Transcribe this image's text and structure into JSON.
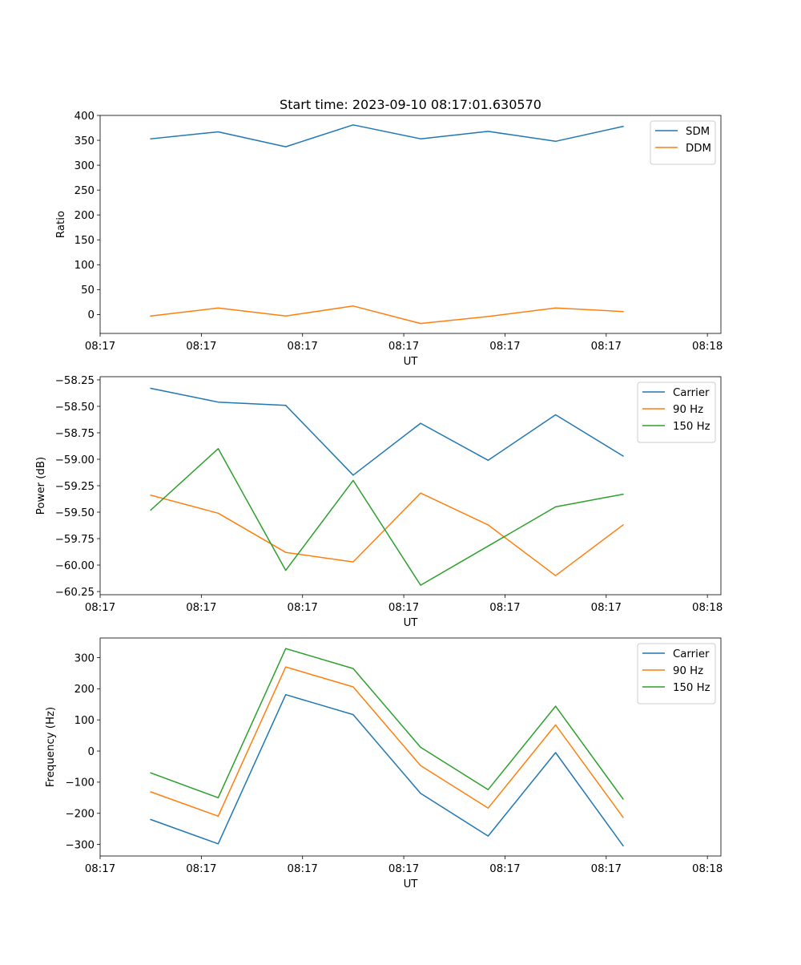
{
  "title": "Start time: 2023-09-10 08:17:01.630570",
  "colors": {
    "blue": "#1f77b4",
    "orange": "#ff7f0e",
    "green": "#2ca02c"
  },
  "chart_data": [
    {
      "type": "line",
      "title": "Start time: 2023-09-10 08:17:01.630570",
      "xlabel": "UT",
      "ylabel": "Ratio",
      "xlim": [
        0,
        9.2
      ],
      "ylim": [
        -38,
        400
      ],
      "x": [
        0.75,
        1.75,
        2.75,
        3.75,
        4.75,
        5.75,
        6.75,
        7.75
      ],
      "xticks": [
        0,
        1.5,
        3,
        4.5,
        6,
        7.5,
        9
      ],
      "xticklabels": [
        "08:17",
        "08:17",
        "08:17",
        "08:17",
        "08:17",
        "08:17",
        "08:18"
      ],
      "yticks": [
        0,
        50,
        100,
        150,
        200,
        250,
        300,
        350,
        400
      ],
      "yticklabels": [
        "0",
        "50",
        "100",
        "150",
        "200",
        "250",
        "300",
        "350",
        "400"
      ],
      "legend_position": "top-right",
      "series": [
        {
          "name": "SDM",
          "color": "#1f77b4",
          "values": [
            353,
            367,
            337,
            381,
            353,
            368,
            348,
            378
          ]
        },
        {
          "name": "DDM",
          "color": "#ff7f0e",
          "values": [
            -3,
            13,
            -3,
            17,
            -18,
            -4,
            13,
            6
          ]
        }
      ]
    },
    {
      "type": "line",
      "xlabel": "UT",
      "ylabel": "Power (dB)",
      "xlim": [
        0,
        9.2
      ],
      "ylim": [
        -60.28,
        -58.22
      ],
      "x": [
        0.75,
        1.75,
        2.75,
        3.75,
        4.75,
        5.75,
        6.75,
        7.75
      ],
      "xticks": [
        0,
        1.5,
        3,
        4.5,
        6,
        7.5,
        9
      ],
      "xticklabels": [
        "08:17",
        "08:17",
        "08:17",
        "08:17",
        "08:17",
        "08:17",
        "08:18"
      ],
      "yticks": [
        -58.25,
        -58.5,
        -58.75,
        -59.0,
        -59.25,
        -59.5,
        -59.75,
        -60.0,
        -60.25
      ],
      "yticklabels": [
        "−58.25",
        "−58.50",
        "−58.75",
        "−59.00",
        "−59.25",
        "−59.50",
        "−59.75",
        "−60.00",
        "−60.25"
      ],
      "legend_position": "top-right",
      "series": [
        {
          "name": "Carrier",
          "color": "#1f77b4",
          "values": [
            -58.33,
            -58.46,
            -58.49,
            -59.15,
            -58.66,
            -59.01,
            -58.58,
            -58.97
          ]
        },
        {
          "name": "90 Hz",
          "color": "#ff7f0e",
          "values": [
            -59.34,
            -59.51,
            -59.88,
            -59.97,
            -59.32,
            -59.62,
            -60.1,
            -59.62
          ]
        },
        {
          "name": "150 Hz",
          "color": "#2ca02c",
          "values": [
            -59.48,
            -58.9,
            -60.05,
            -59.2,
            -60.19,
            -59.82,
            -59.45,
            -59.33
          ]
        }
      ]
    },
    {
      "type": "line",
      "xlabel": "UT",
      "ylabel": "Frequency (Hz)",
      "xlim": [
        0,
        9.2
      ],
      "ylim": [
        -337,
        363
      ],
      "x": [
        0.75,
        1.75,
        2.75,
        3.75,
        4.75,
        5.75,
        6.75,
        7.75
      ],
      "xticks": [
        0,
        1.5,
        3,
        4.5,
        6,
        7.5,
        9
      ],
      "xticklabels": [
        "08:17",
        "08:17",
        "08:17",
        "08:17",
        "08:17",
        "08:17",
        "08:18"
      ],
      "yticks": [
        -300,
        -200,
        -100,
        0,
        100,
        200,
        300
      ],
      "yticklabels": [
        "−300",
        "−200",
        "−100",
        "0",
        "100",
        "200",
        "300"
      ],
      "legend_position": "top-right",
      "series": [
        {
          "name": "Carrier",
          "color": "#1f77b4",
          "values": [
            -220,
            -298,
            181,
            117,
            -136,
            -273,
            -5,
            -304
          ]
        },
        {
          "name": "90 Hz",
          "color": "#ff7f0e",
          "values": [
            -131,
            -209,
            270,
            206,
            -47,
            -183,
            84,
            -213
          ]
        },
        {
          "name": "150 Hz",
          "color": "#2ca02c",
          "values": [
            -70,
            -150,
            329,
            265,
            12,
            -124,
            144,
            -154
          ]
        }
      ]
    }
  ]
}
